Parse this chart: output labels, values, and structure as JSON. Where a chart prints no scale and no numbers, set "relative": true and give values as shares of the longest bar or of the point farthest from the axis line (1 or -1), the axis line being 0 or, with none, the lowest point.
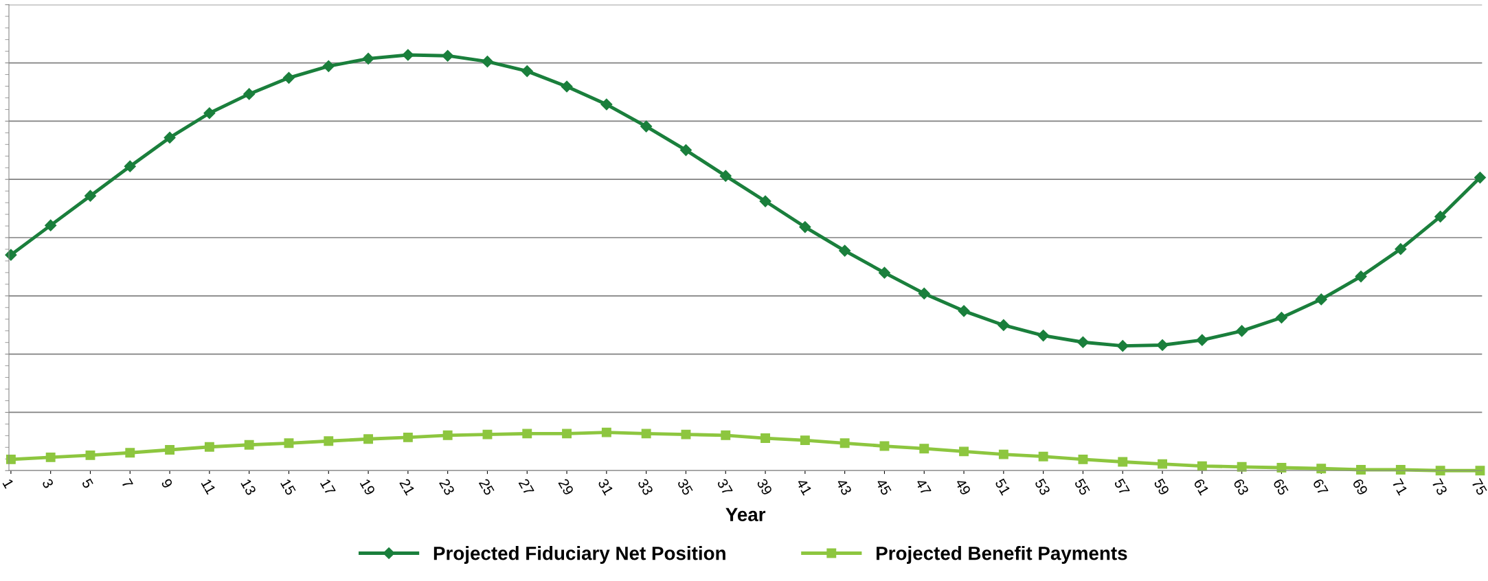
{
  "chart_data": {
    "type": "line",
    "relative": true,
    "xlabel": "Year",
    "grid": "y",
    "legend": "bottom",
    "line_style": "solid",
    "categories": [
      "1",
      "3",
      "5",
      "7",
      "9",
      "11",
      "13",
      "15",
      "17",
      "19",
      "21",
      "23",
      "25",
      "27",
      "29",
      "31",
      "33",
      "35",
      "37",
      "39",
      "41",
      "43",
      "45",
      "47",
      "49",
      "51",
      "53",
      "55",
      "57",
      "59",
      "61",
      "63",
      "65",
      "67",
      "69",
      "71",
      "73",
      "75"
    ],
    "series": [
      {
        "name": "Projected Fiduciary Net Position",
        "color": "#1a7f3c",
        "marker": "diamond",
        "values": [
          0.519,
          0.59,
          0.661,
          0.732,
          0.801,
          0.86,
          0.906,
          0.945,
          0.973,
          0.991,
          1.0,
          0.998,
          0.984,
          0.961,
          0.924,
          0.881,
          0.828,
          0.771,
          0.709,
          0.648,
          0.586,
          0.529,
          0.476,
          0.426,
          0.384,
          0.35,
          0.325,
          0.309,
          0.3,
          0.302,
          0.314,
          0.336,
          0.368,
          0.412,
          0.467,
          0.533,
          0.611,
          0.705
        ]
      },
      {
        "name": "Projected Benefit Payments",
        "color": "#8dc63f",
        "marker": "square",
        "values": [
          0.027,
          0.032,
          0.037,
          0.043,
          0.05,
          0.057,
          0.062,
          0.066,
          0.071,
          0.076,
          0.08,
          0.085,
          0.087,
          0.089,
          0.089,
          0.092,
          0.089,
          0.087,
          0.085,
          0.078,
          0.073,
          0.066,
          0.059,
          0.053,
          0.046,
          0.039,
          0.034,
          0.027,
          0.021,
          0.016,
          0.011,
          0.009,
          0.007,
          0.005,
          0.002,
          0.002,
          0,
          0
        ]
      }
    ]
  }
}
